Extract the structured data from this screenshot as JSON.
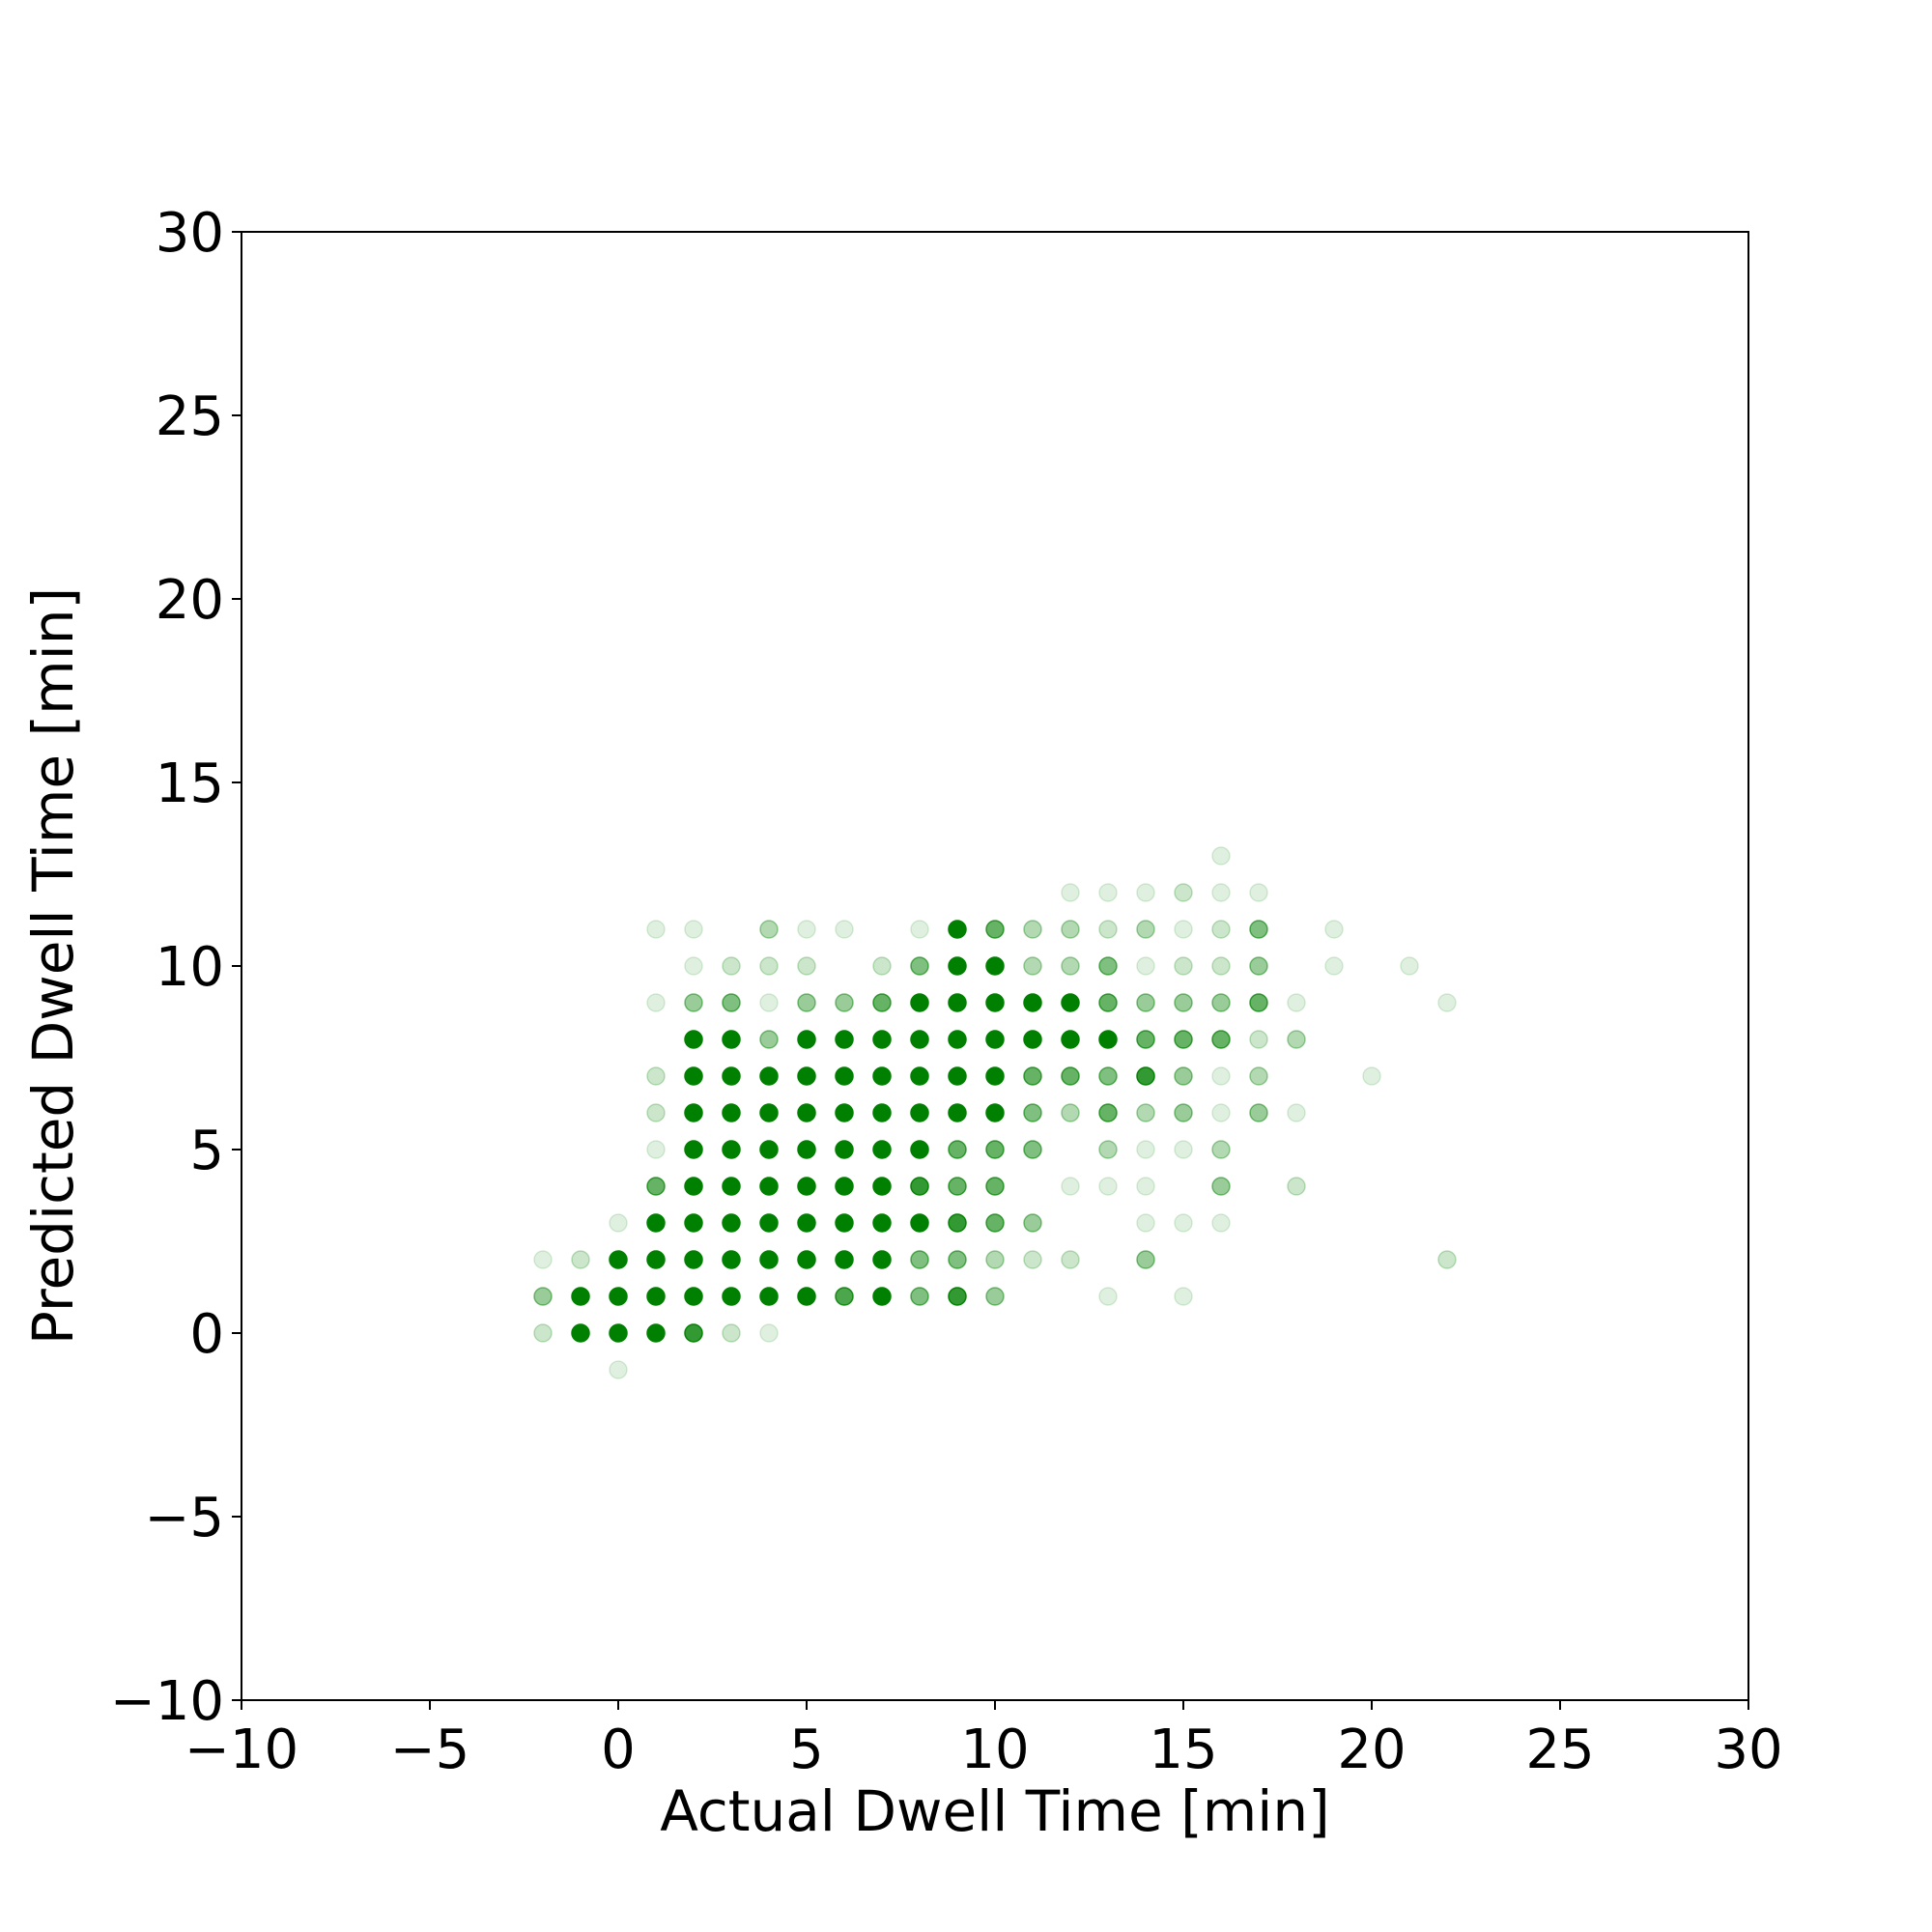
{
  "chart_data": {
    "type": "scatter",
    "title": "",
    "xlabel": "Actual Dwell Time [min]",
    "ylabel": "Predicted Dwell Time [min]",
    "xlim": [
      -10,
      30
    ],
    "ylim": [
      -10,
      30
    ],
    "xticks": [
      -10,
      -5,
      0,
      5,
      10,
      15,
      20,
      25,
      30
    ],
    "yticks": [
      -10,
      -5,
      0,
      5,
      10,
      15,
      20,
      25,
      30
    ],
    "xtick_labels": [
      "−10",
      "−5",
      "0",
      "5",
      "10",
      "15",
      "20",
      "25",
      "30"
    ],
    "ytick_labels": [
      "−10",
      "−5",
      "0",
      "5",
      "10",
      "15",
      "20",
      "25",
      "30"
    ],
    "grid": false,
    "marker_color": "#008000",
    "points_note_alpha": "each point is [actual, predicted, opacity]",
    "points": [
      [
        -2,
        2,
        0.12
      ],
      [
        -2,
        1,
        0.4
      ],
      [
        -2,
        0,
        0.2
      ],
      [
        -1,
        2,
        0.2
      ],
      [
        -1,
        1,
        1
      ],
      [
        -1,
        0,
        1
      ],
      [
        0,
        3,
        0.12
      ],
      [
        0,
        2,
        1
      ],
      [
        0,
        1,
        1
      ],
      [
        0,
        0,
        1
      ],
      [
        0,
        -1,
        0.12
      ],
      [
        1,
        11,
        0.12
      ],
      [
        1,
        9,
        0.12
      ],
      [
        1,
        7,
        0.2
      ],
      [
        1,
        6,
        0.2
      ],
      [
        1,
        5,
        0.12
      ],
      [
        1,
        4,
        0.6
      ],
      [
        1,
        3,
        1
      ],
      [
        1,
        2,
        1
      ],
      [
        1,
        1,
        1
      ],
      [
        1,
        0,
        1
      ],
      [
        2,
        11,
        0.12
      ],
      [
        2,
        10,
        0.12
      ],
      [
        2,
        9,
        0.4
      ],
      [
        2,
        8,
        1
      ],
      [
        2,
        7,
        1
      ],
      [
        2,
        6,
        1
      ],
      [
        2,
        5,
        1
      ],
      [
        2,
        4,
        1
      ],
      [
        2,
        3,
        1
      ],
      [
        2,
        2,
        1
      ],
      [
        2,
        1,
        1
      ],
      [
        2,
        0,
        0.8
      ],
      [
        3,
        10,
        0.2
      ],
      [
        3,
        9,
        0.5
      ],
      [
        3,
        8,
        1
      ],
      [
        3,
        7,
        1
      ],
      [
        3,
        6,
        1
      ],
      [
        3,
        5,
        1
      ],
      [
        3,
        4,
        1
      ],
      [
        3,
        3,
        1
      ],
      [
        3,
        2,
        1
      ],
      [
        3,
        1,
        1
      ],
      [
        3,
        0,
        0.2
      ],
      [
        4,
        11,
        0.3
      ],
      [
        4,
        10,
        0.2
      ],
      [
        4,
        9,
        0.12
      ],
      [
        4,
        8,
        0.4
      ],
      [
        4,
        7,
        1
      ],
      [
        4,
        6,
        1
      ],
      [
        4,
        5,
        1
      ],
      [
        4,
        4,
        1
      ],
      [
        4,
        3,
        1
      ],
      [
        4,
        2,
        1
      ],
      [
        4,
        1,
        1
      ],
      [
        4,
        0,
        0.12
      ],
      [
        5,
        11,
        0.12
      ],
      [
        5,
        10,
        0.2
      ],
      [
        5,
        9,
        0.4
      ],
      [
        5,
        8,
        1
      ],
      [
        5,
        7,
        1
      ],
      [
        5,
        6,
        1
      ],
      [
        5,
        5,
        1
      ],
      [
        5,
        4,
        1
      ],
      [
        5,
        3,
        1
      ],
      [
        5,
        2,
        1
      ],
      [
        5,
        1,
        1
      ],
      [
        6,
        11,
        0.12
      ],
      [
        6,
        9,
        0.4
      ],
      [
        6,
        8,
        1
      ],
      [
        6,
        7,
        1
      ],
      [
        6,
        6,
        1
      ],
      [
        6,
        5,
        1
      ],
      [
        6,
        4,
        1
      ],
      [
        6,
        3,
        1
      ],
      [
        6,
        2,
        1
      ],
      [
        6,
        1,
        0.7
      ],
      [
        7,
        10,
        0.2
      ],
      [
        7,
        9,
        0.6
      ],
      [
        7,
        8,
        1
      ],
      [
        7,
        7,
        1
      ],
      [
        7,
        6,
        1
      ],
      [
        7,
        5,
        1
      ],
      [
        7,
        4,
        1
      ],
      [
        7,
        3,
        1
      ],
      [
        7,
        2,
        1
      ],
      [
        7,
        1,
        1
      ],
      [
        8,
        11,
        0.12
      ],
      [
        8,
        10,
        0.5
      ],
      [
        8,
        9,
        1
      ],
      [
        8,
        8,
        1
      ],
      [
        8,
        7,
        1
      ],
      [
        8,
        6,
        1
      ],
      [
        8,
        5,
        1
      ],
      [
        8,
        4,
        0.8
      ],
      [
        8,
        3,
        1
      ],
      [
        8,
        2,
        0.5
      ],
      [
        8,
        1,
        0.5
      ],
      [
        9,
        11,
        1
      ],
      [
        9,
        10,
        1
      ],
      [
        9,
        9,
        1
      ],
      [
        9,
        8,
        1
      ],
      [
        9,
        7,
        1
      ],
      [
        9,
        6,
        1
      ],
      [
        9,
        5,
        0.6
      ],
      [
        9,
        4,
        0.6
      ],
      [
        9,
        3,
        0.8
      ],
      [
        9,
        2,
        0.5
      ],
      [
        9,
        1,
        0.8
      ],
      [
        10,
        11,
        0.6
      ],
      [
        10,
        10,
        1
      ],
      [
        10,
        9,
        1
      ],
      [
        10,
        8,
        1
      ],
      [
        10,
        7,
        1
      ],
      [
        10,
        6,
        1
      ],
      [
        10,
        5,
        0.6
      ],
      [
        10,
        4,
        0.6
      ],
      [
        10,
        3,
        0.6
      ],
      [
        10,
        2,
        0.3
      ],
      [
        10,
        1,
        0.4
      ],
      [
        11,
        11,
        0.3
      ],
      [
        11,
        10,
        0.3
      ],
      [
        11,
        9,
        1
      ],
      [
        11,
        8,
        1
      ],
      [
        11,
        7,
        0.6
      ],
      [
        11,
        6,
        0.5
      ],
      [
        11,
        5,
        0.5
      ],
      [
        11,
        3,
        0.4
      ],
      [
        11,
        2,
        0.2
      ],
      [
        12,
        12,
        0.12
      ],
      [
        12,
        11,
        0.3
      ],
      [
        12,
        10,
        0.3
      ],
      [
        12,
        9,
        1
      ],
      [
        12,
        8,
        1
      ],
      [
        12,
        7,
        0.6
      ],
      [
        12,
        6,
        0.3
      ],
      [
        12,
        4,
        0.12
      ],
      [
        12,
        2,
        0.2
      ],
      [
        13,
        12,
        0.12
      ],
      [
        13,
        11,
        0.2
      ],
      [
        13,
        10,
        0.5
      ],
      [
        13,
        9,
        0.6
      ],
      [
        13,
        8,
        1
      ],
      [
        13,
        7,
        0.5
      ],
      [
        13,
        6,
        0.6
      ],
      [
        13,
        5,
        0.3
      ],
      [
        13,
        4,
        0.12
      ],
      [
        13,
        1,
        0.12
      ],
      [
        14,
        12,
        0.12
      ],
      [
        14,
        11,
        0.3
      ],
      [
        14,
        10,
        0.12
      ],
      [
        14,
        9,
        0.4
      ],
      [
        14,
        8,
        0.6
      ],
      [
        14,
        7,
        0.8
      ],
      [
        14,
        6,
        0.3
      ],
      [
        14,
        5,
        0.12
      ],
      [
        14,
        4,
        0.12
      ],
      [
        14,
        3,
        0.12
      ],
      [
        14,
        2,
        0.4
      ],
      [
        15,
        12,
        0.2
      ],
      [
        15,
        11,
        0.12
      ],
      [
        15,
        10,
        0.2
      ],
      [
        15,
        9,
        0.4
      ],
      [
        15,
        8,
        0.6
      ],
      [
        15,
        7,
        0.4
      ],
      [
        15,
        6,
        0.4
      ],
      [
        15,
        5,
        0.12
      ],
      [
        15,
        3,
        0.12
      ],
      [
        15,
        1,
        0.12
      ],
      [
        16,
        13,
        0.12
      ],
      [
        16,
        12,
        0.12
      ],
      [
        16,
        11,
        0.2
      ],
      [
        16,
        10,
        0.2
      ],
      [
        16,
        9,
        0.4
      ],
      [
        16,
        8,
        0.6
      ],
      [
        16,
        7,
        0.12
      ],
      [
        16,
        6,
        0.12
      ],
      [
        16,
        5,
        0.3
      ],
      [
        16,
        4,
        0.4
      ],
      [
        16,
        3,
        0.12
      ],
      [
        17,
        12,
        0.12
      ],
      [
        17,
        11,
        0.5
      ],
      [
        17,
        10,
        0.4
      ],
      [
        17,
        9,
        0.6
      ],
      [
        17,
        8,
        0.2
      ],
      [
        17,
        7,
        0.3
      ],
      [
        17,
        6,
        0.4
      ],
      [
        18,
        9,
        0.12
      ],
      [
        18,
        8,
        0.3
      ],
      [
        18,
        6,
        0.12
      ],
      [
        18,
        4,
        0.2
      ],
      [
        19,
        11,
        0.12
      ],
      [
        19,
        10,
        0.12
      ],
      [
        20,
        7,
        0.12
      ],
      [
        21,
        10,
        0.12
      ],
      [
        22,
        9,
        0.12
      ],
      [
        22,
        2,
        0.2
      ]
    ]
  }
}
